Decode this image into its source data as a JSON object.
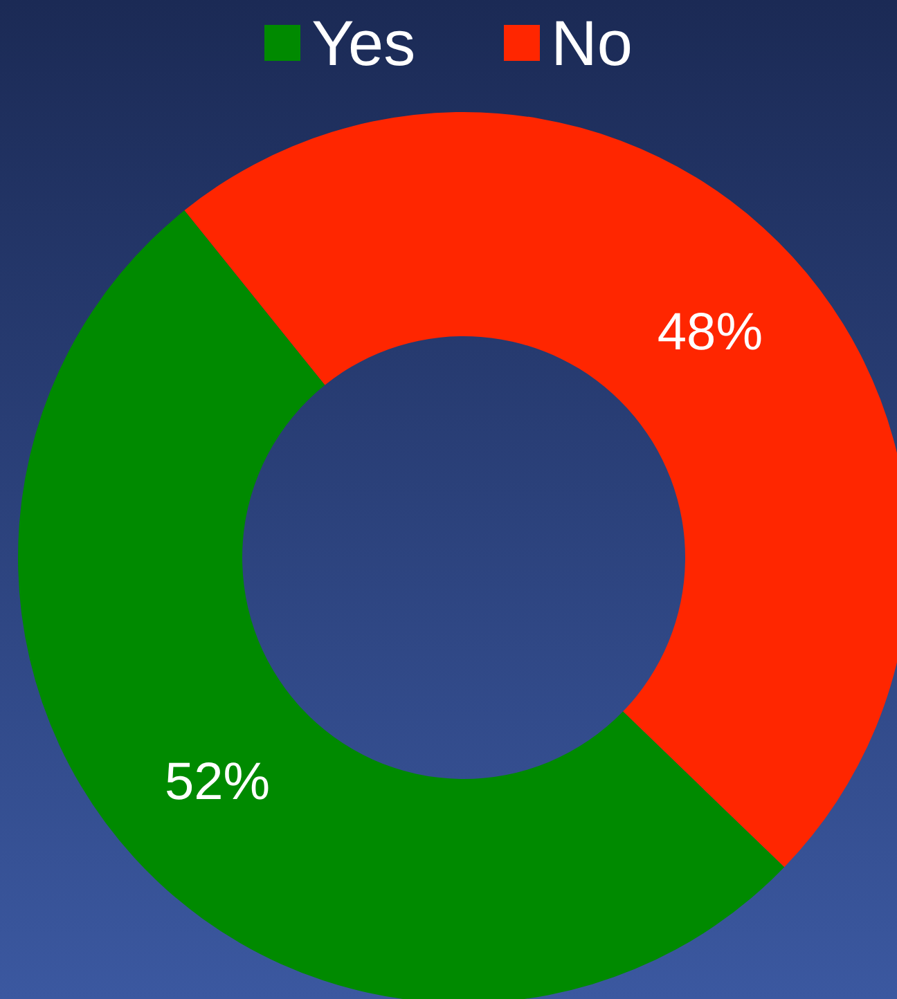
{
  "chart_data": {
    "type": "donut",
    "categories": [
      "Yes",
      "No"
    ],
    "values": [
      52,
      48
    ],
    "value_labels": [
      "52%",
      "48%"
    ],
    "colors": [
      "#008a00",
      "#ff2600"
    ],
    "legend": "top"
  }
}
